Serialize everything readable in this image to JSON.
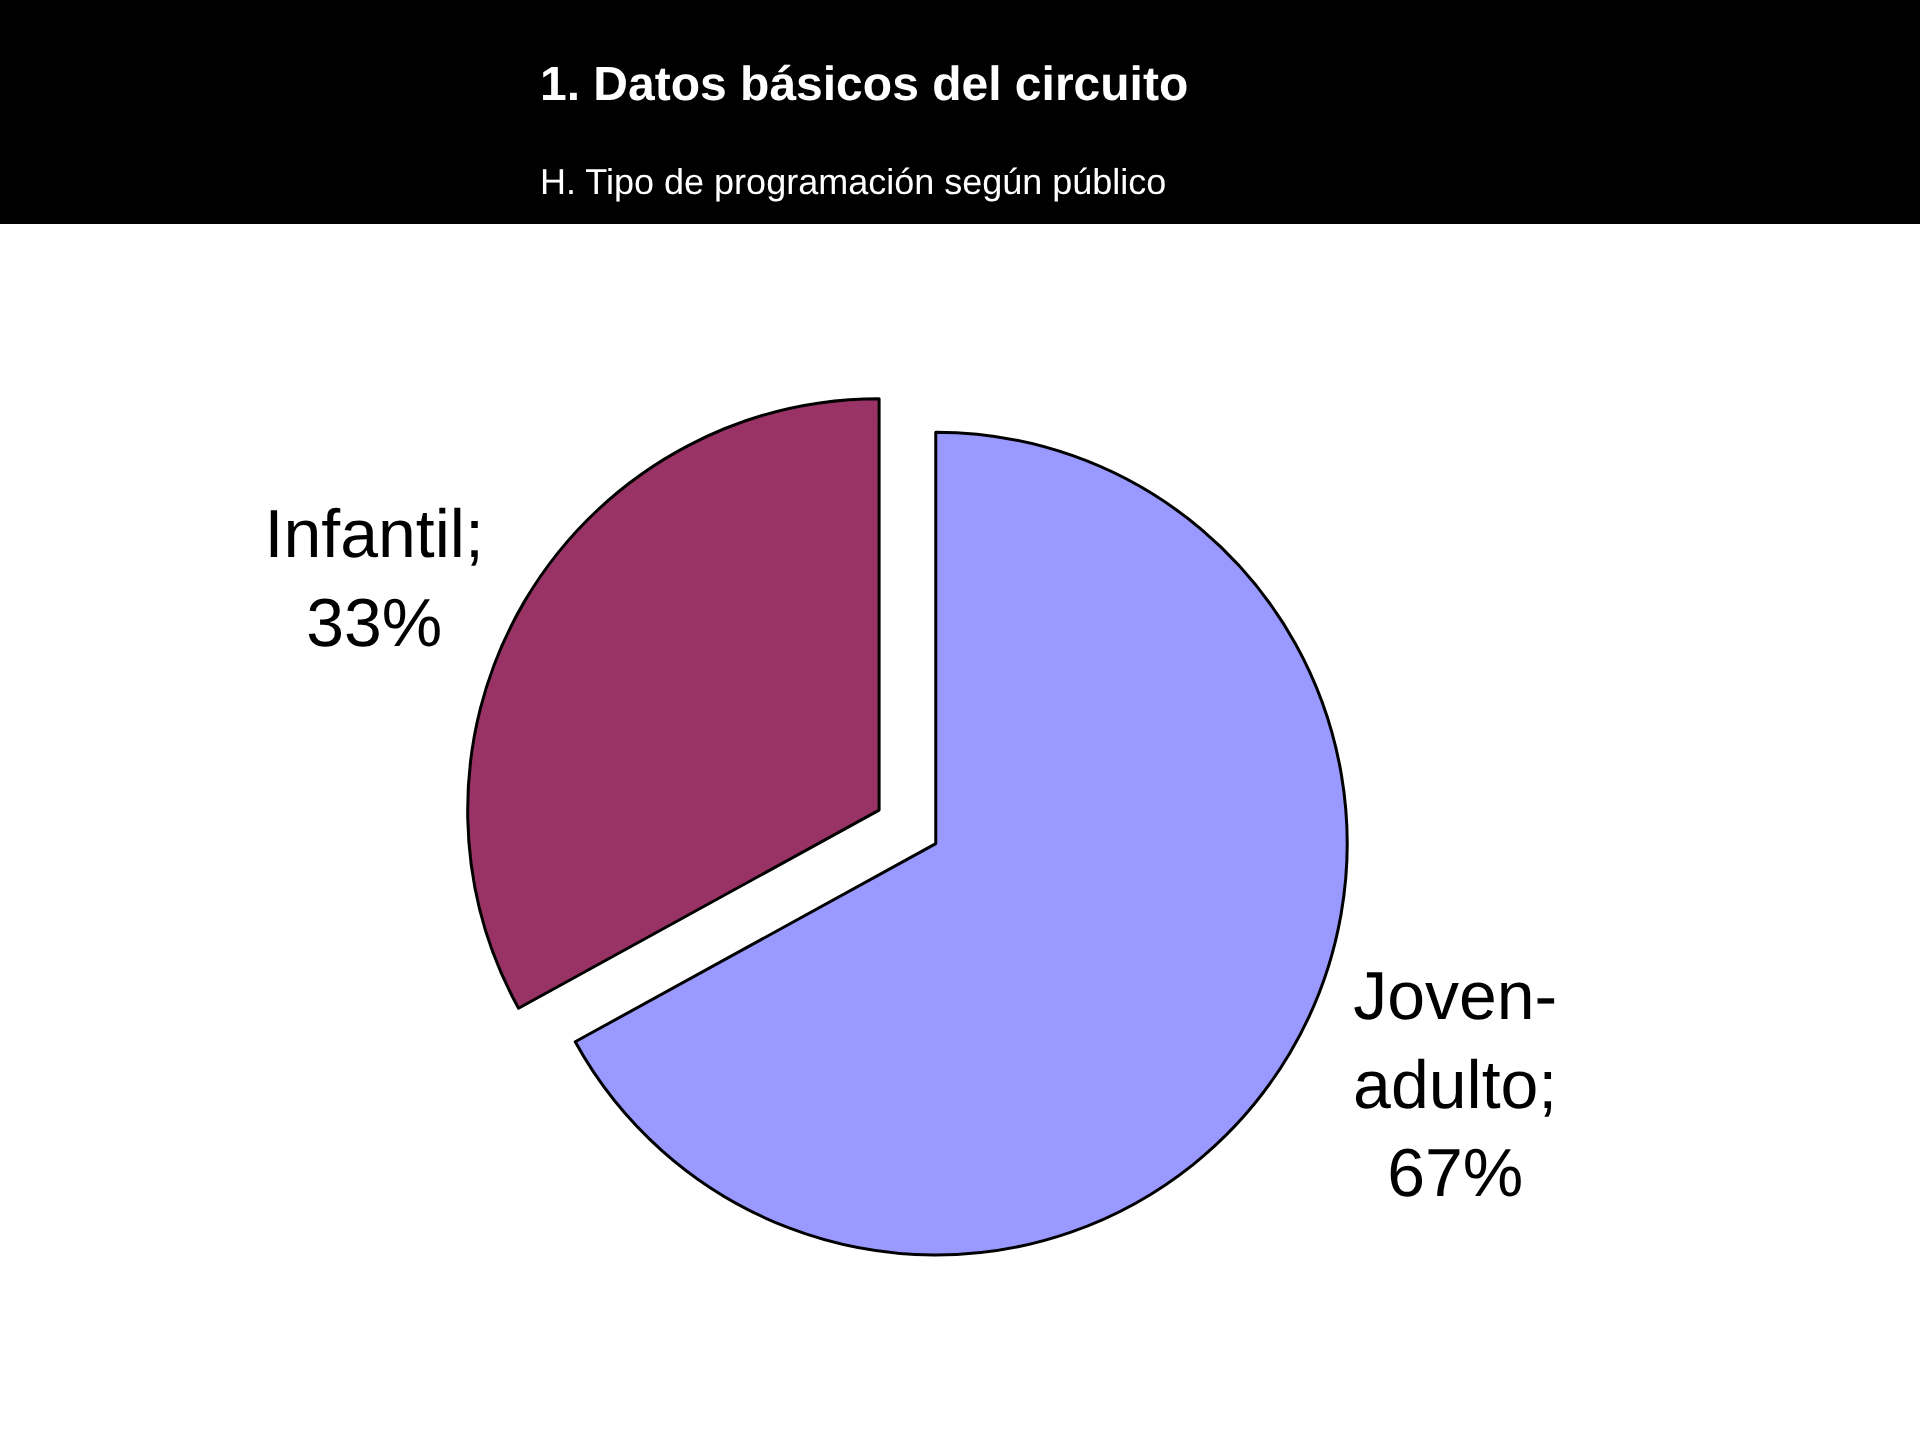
{
  "chart_data": {
    "type": "pie",
    "title": "1. Datos básicos del circuito",
    "subtitle": "H. Tipo de programación según público",
    "categories": [
      "Infantil",
      "Joven-adulto"
    ],
    "values": [
      33,
      67
    ],
    "colors": [
      "#993366",
      "#9999ff"
    ],
    "value_labels": [
      "; 33%",
      "; 67%"
    ]
  }
}
